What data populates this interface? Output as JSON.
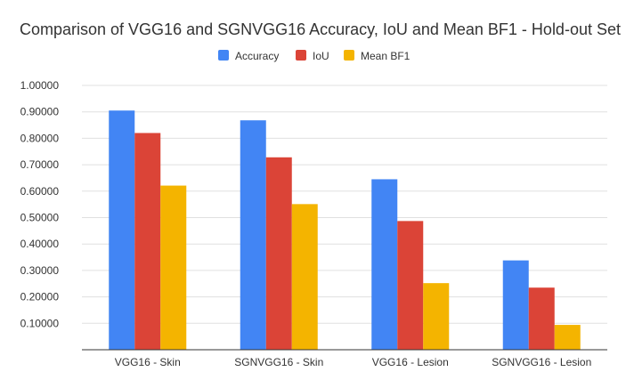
{
  "chart_data": {
    "type": "bar",
    "title": "Comparison of VGG16 and SGNVGG16  Accuracy, IoU and Mean BF1 - Hold-out Set",
    "xlabel": "",
    "ylabel": "",
    "ylim": [
      0,
      1
    ],
    "y_ticks": [
      0.1,
      0.2,
      0.3,
      0.4,
      0.5,
      0.6,
      0.7,
      0.8,
      0.9,
      1.0
    ],
    "y_tick_labels": [
      "0.10000",
      "0.20000",
      "0.30000",
      "0.40000",
      "0.50000",
      "0.60000",
      "0.70000",
      "0.80000",
      "0.90000",
      "1.00000"
    ],
    "grid": true,
    "legend_position": "top-center",
    "categories": [
      "VGG16 - Skin",
      "SGNVGG16 - Skin",
      "VGG16 - Lesion",
      "SGNVGG16 - Lesion"
    ],
    "series": [
      {
        "name": "Accuracy",
        "color": "#4285f4",
        "values": [
          0.905,
          0.868,
          0.645,
          0.338
        ]
      },
      {
        "name": "IoU",
        "color": "#db4437",
        "values": [
          0.82,
          0.728,
          0.487,
          0.235
        ]
      },
      {
        "name": "Mean BF1",
        "color": "#f4b400",
        "values": [
          0.621,
          0.551,
          0.252,
          0.094
        ]
      }
    ]
  }
}
